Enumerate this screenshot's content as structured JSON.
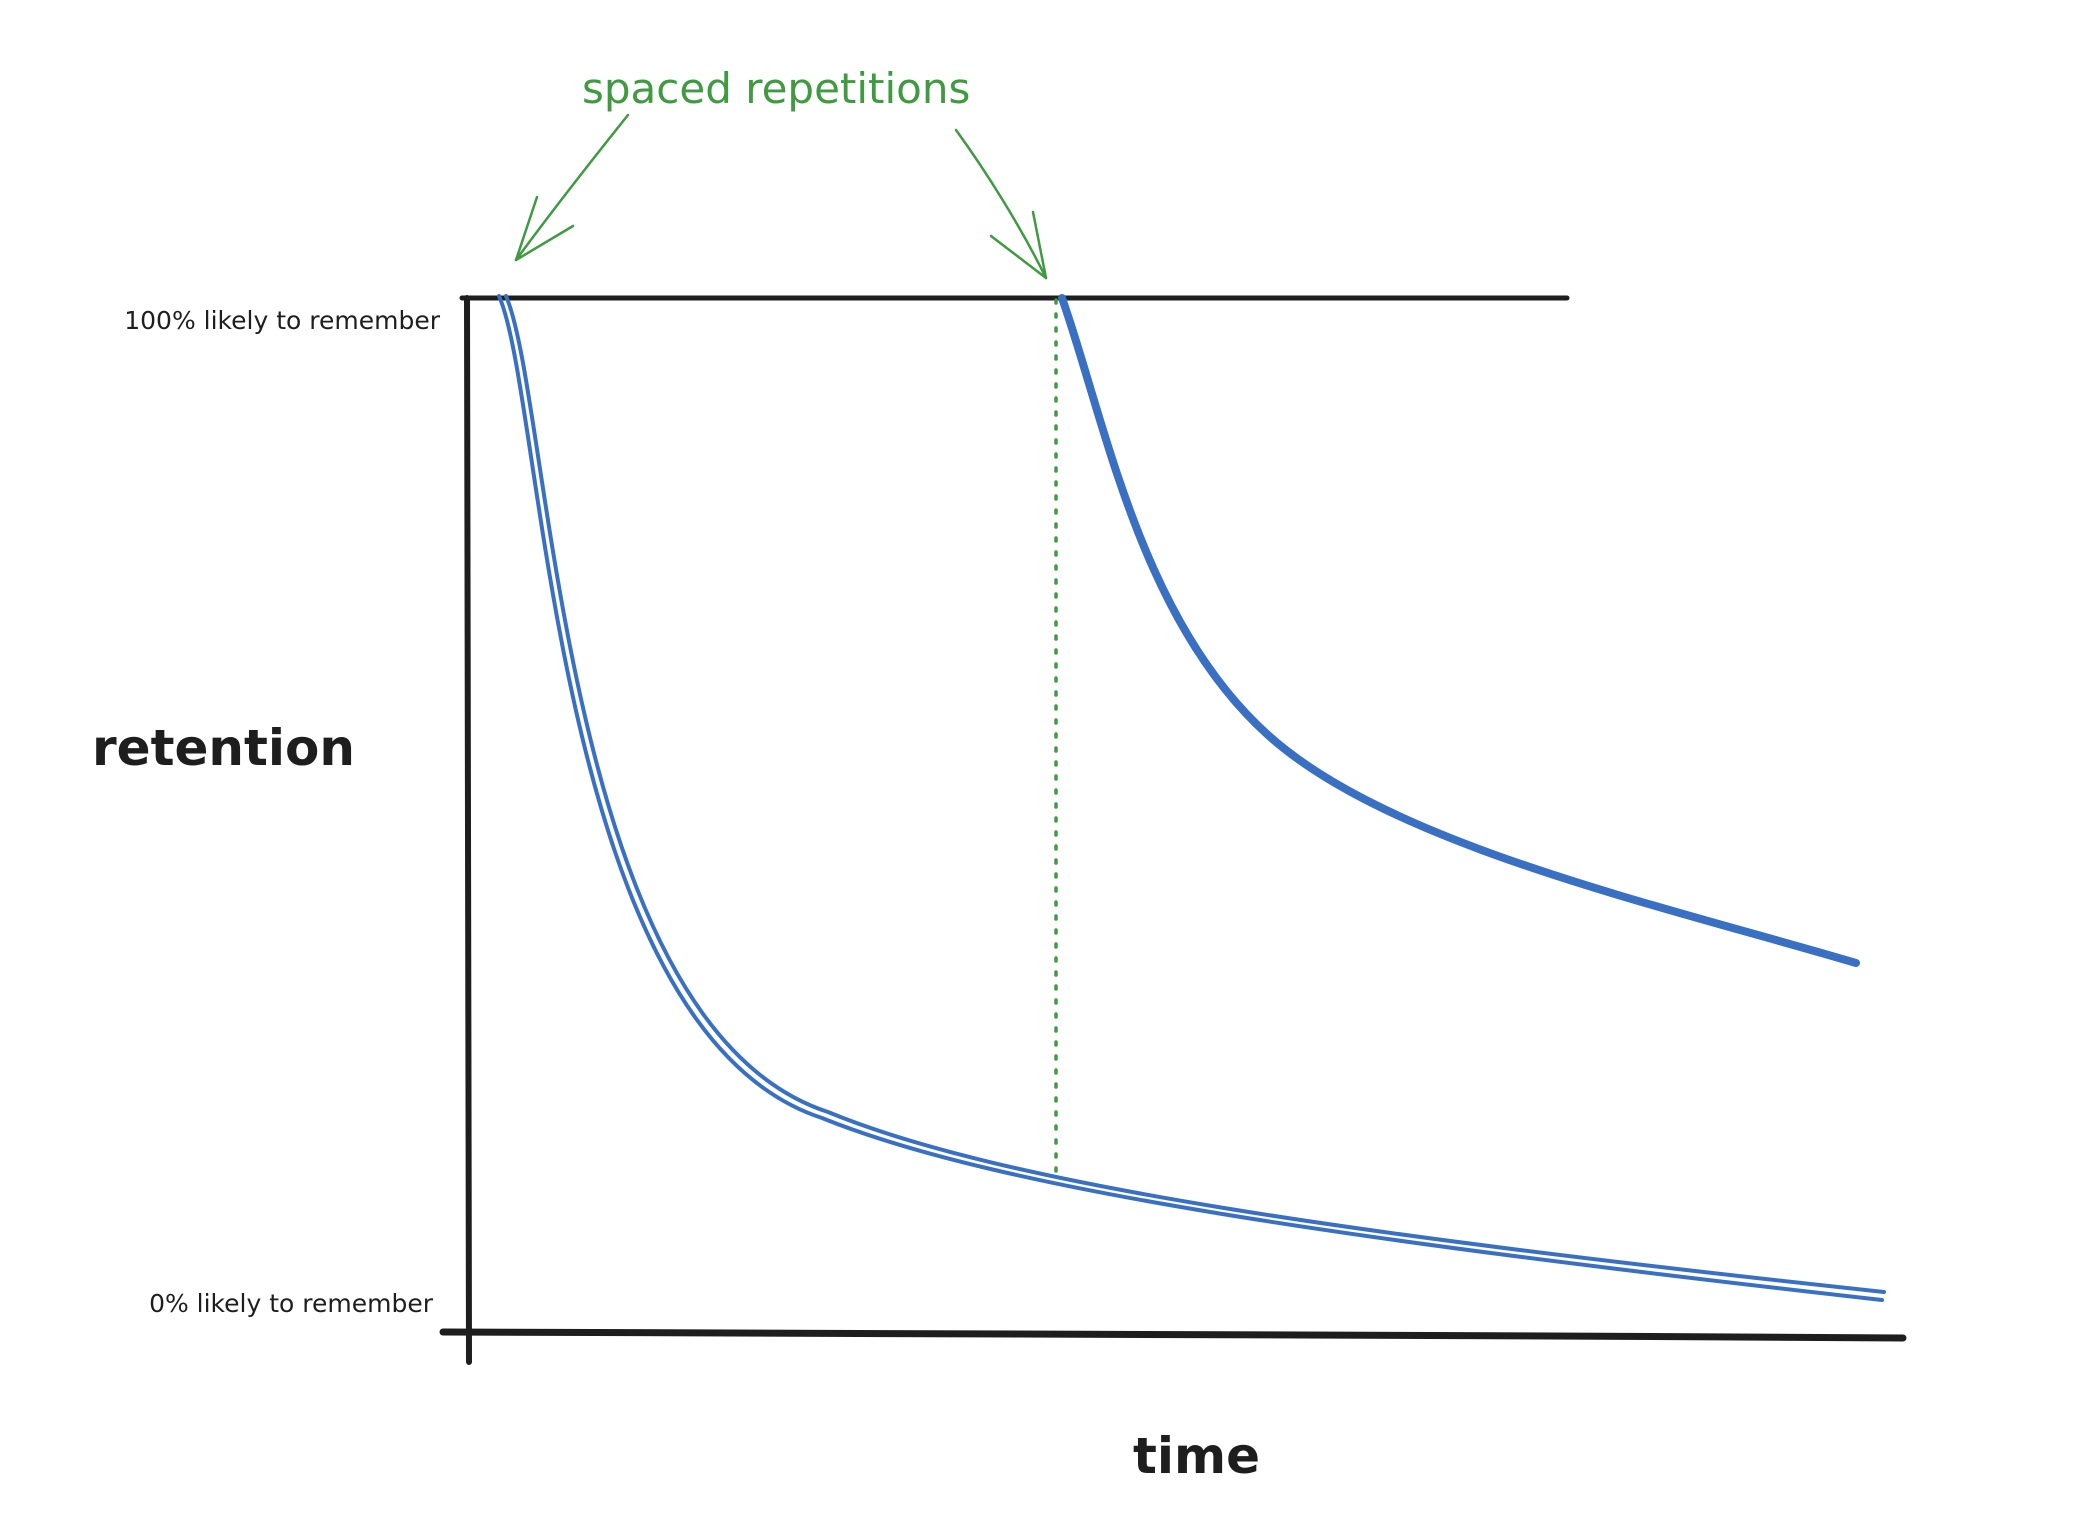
{
  "labels": {
    "top_level": "100% likely to remember",
    "bottom_level": "0% likely to remember",
    "y_axis": "retention",
    "x_axis": "time",
    "annotation": "spaced repetitions"
  },
  "colors": {
    "axis": "#1e1e1e",
    "curve": "#3a70c4",
    "annotation": "#3f9a41",
    "background": "#ffffff"
  }
}
